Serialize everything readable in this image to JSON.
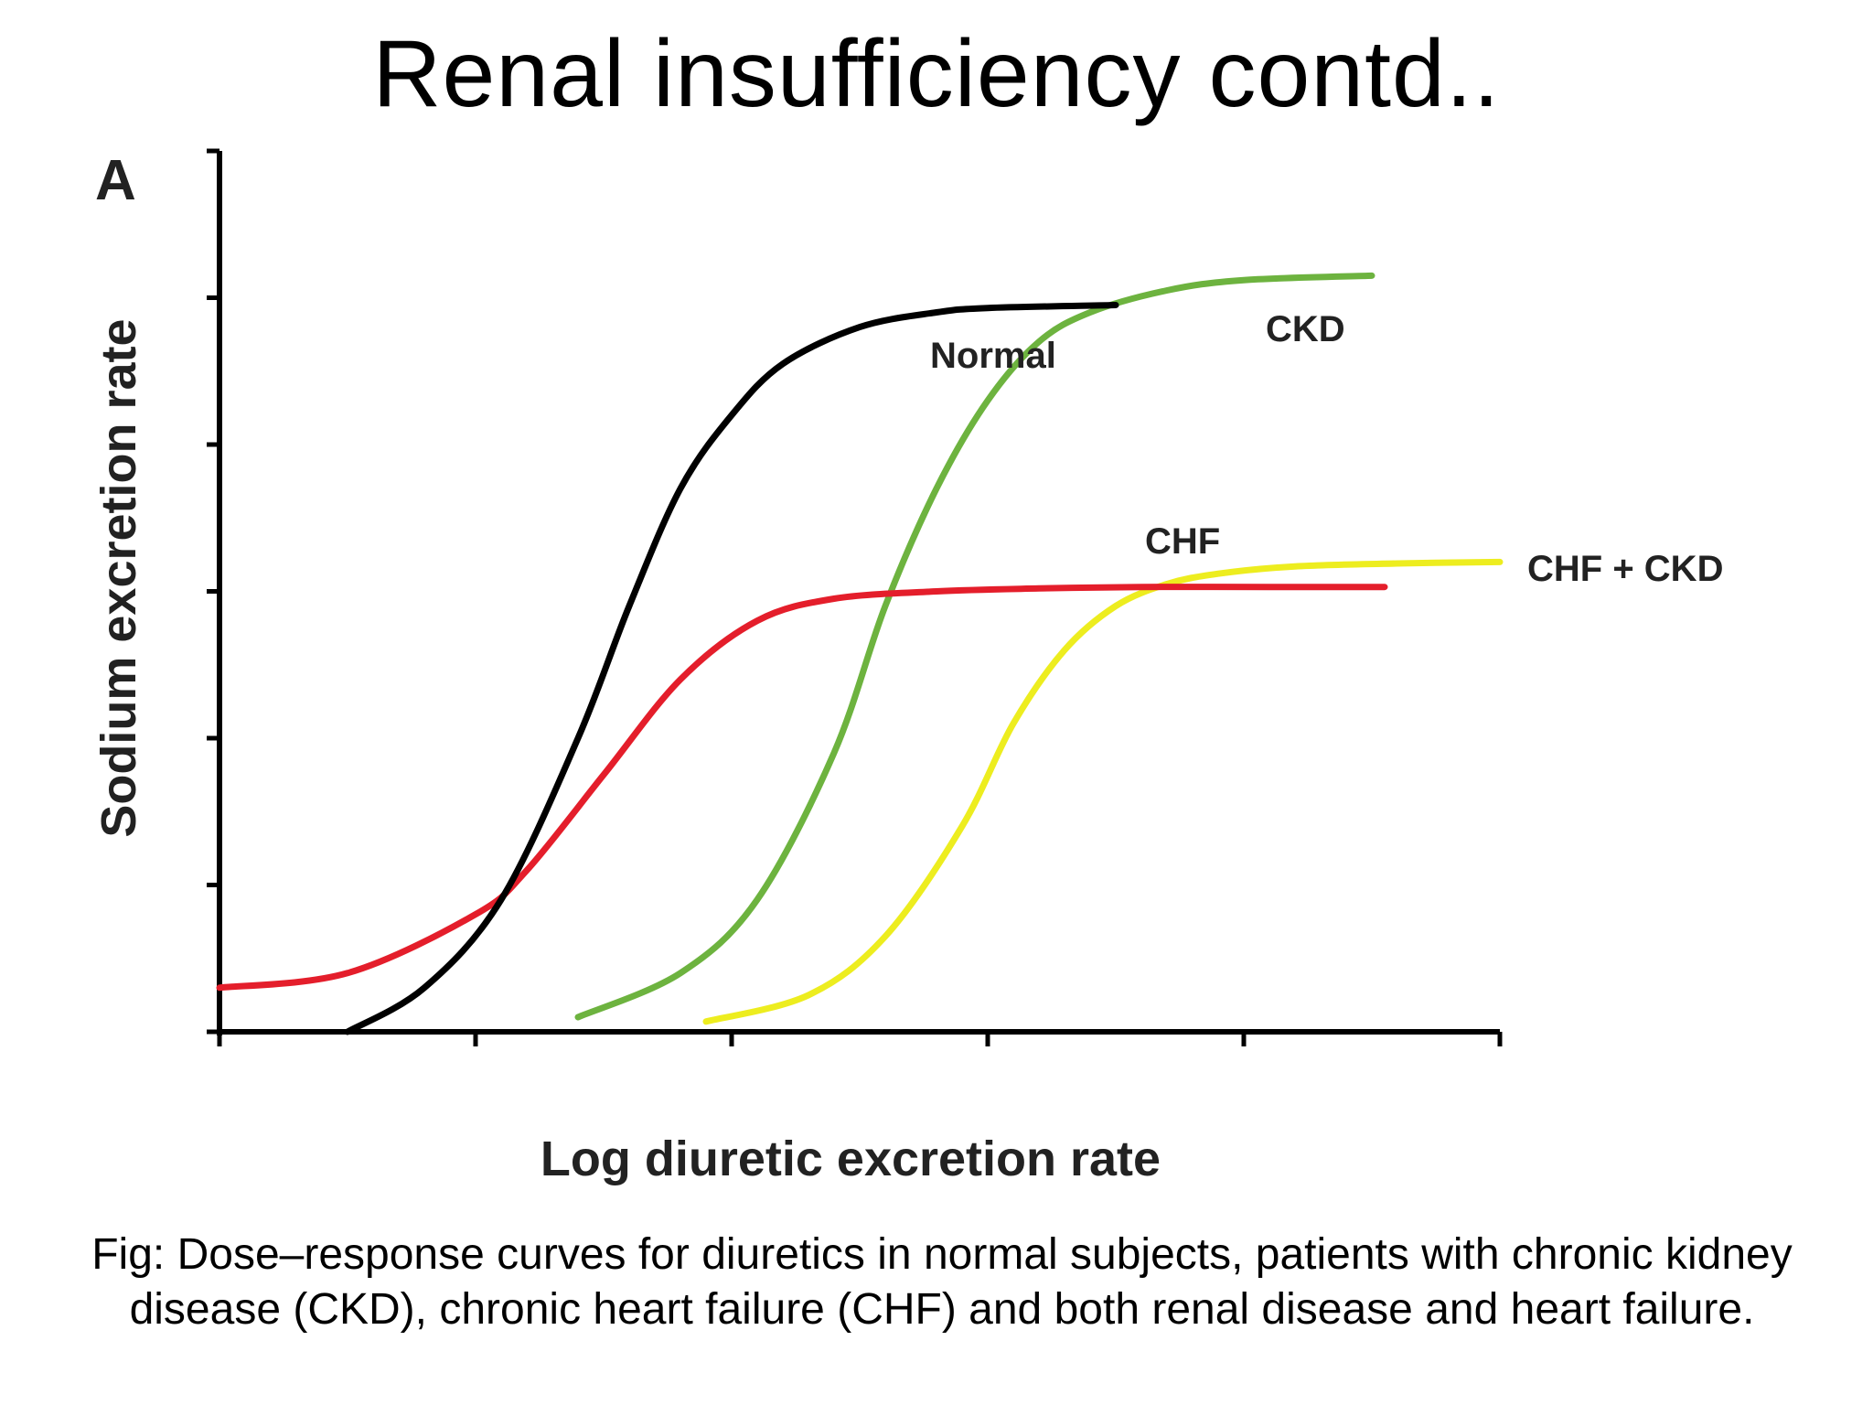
{
  "slide": {
    "title": "Renal insufficiency contd..",
    "caption": "Fig: Dose–response curves for diuretics in normal subjects, patients with chronic kidney disease (CKD), chronic heart failure (CHF) and both renal disease and heart failure."
  },
  "chart_data": {
    "type": "line",
    "panel_label": "A",
    "title": "",
    "xlabel": "Log diuretic excretion rate",
    "ylabel": "Sodium excretion rate",
    "xlim": [
      0,
      5
    ],
    "ylim": [
      0,
      6
    ],
    "x_ticks": [
      0,
      1,
      2,
      3,
      4,
      5
    ],
    "y_ticks": [
      0,
      1,
      2,
      3,
      4,
      5,
      6
    ],
    "tick_labels_shown": false,
    "grid": false,
    "legend": "inline labels",
    "series": [
      {
        "name": "Normal",
        "color": "#000000",
        "x": [
          0.5,
          0.8,
          1.1,
          1.4,
          1.6,
          1.8,
          2.0,
          2.2,
          2.5,
          2.8,
          3.0,
          3.5
        ],
        "y": [
          0.0,
          0.3,
          0.9,
          2.0,
          2.9,
          3.7,
          4.2,
          4.55,
          4.8,
          4.9,
          4.93,
          4.95
        ]
      },
      {
        "name": "CKD",
        "color": "#6db33f",
        "x": [
          1.4,
          1.8,
          2.1,
          2.4,
          2.6,
          2.8,
          3.0,
          3.2,
          3.4,
          3.7,
          4.0,
          4.5
        ],
        "y": [
          0.1,
          0.4,
          0.9,
          1.9,
          2.9,
          3.7,
          4.3,
          4.7,
          4.9,
          5.05,
          5.12,
          5.15
        ]
      },
      {
        "name": "CHF",
        "color": "#e41e2b",
        "x": [
          0.0,
          0.5,
          1.0,
          1.2,
          1.5,
          1.8,
          2.1,
          2.4,
          2.8,
          3.2,
          3.6,
          4.1,
          4.55
        ],
        "y": [
          0.3,
          0.4,
          0.8,
          1.1,
          1.75,
          2.4,
          2.8,
          2.95,
          3.0,
          3.02,
          3.03,
          3.03,
          3.03
        ]
      },
      {
        "name": "CHF + CKD",
        "color": "#eded1f",
        "x": [
          1.9,
          2.3,
          2.6,
          2.9,
          3.1,
          3.3,
          3.5,
          3.7,
          3.9,
          4.2,
          4.6,
          5.0
        ],
        "y": [
          0.07,
          0.25,
          0.65,
          1.4,
          2.1,
          2.6,
          2.9,
          3.05,
          3.12,
          3.17,
          3.19,
          3.2
        ]
      }
    ]
  }
}
